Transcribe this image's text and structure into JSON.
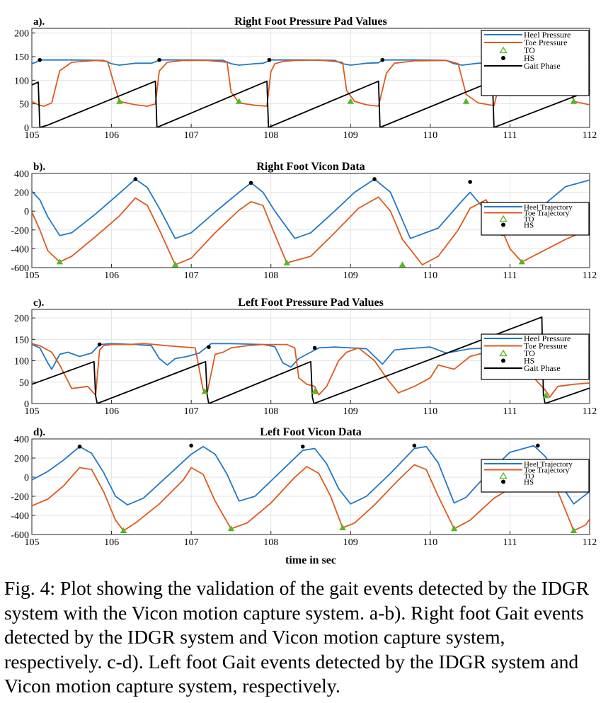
{
  "colors": {
    "heel": "#2277c6",
    "toe": "#dc5a1e",
    "gait": "#000000",
    "to_marker": "#53b824",
    "hs_marker": "#000000"
  },
  "xlabel": "time in sec",
  "caption": "Fig. 4: Plot showing the validation of the gait events detected by the IDGR system with the Vicon motion capture system. a-b). Right foot Gait events detected by the IDGR system and Vicon motion capture system, respectively. c-d). Left foot Gait events detected by the IDGR system and Vicon motion capture system, respectively.",
  "chart_data": [
    {
      "panel": "a).",
      "type": "line",
      "title": "Right Foot Pressure Pad Values",
      "xlim": [
        105,
        112
      ],
      "ylim": [
        0,
        210
      ],
      "xticks": [
        105,
        106,
        107,
        108,
        109,
        110,
        111,
        112
      ],
      "yticks": [
        0,
        50,
        100,
        150,
        200
      ],
      "grid": true,
      "legend_placement": "top-right",
      "legend": [
        "Heel Pressure",
        "Toe Pressure",
        "TO",
        "HS",
        "Gait Phase"
      ],
      "series": [
        {
          "name": "Heel Pressure",
          "color_key": "heel",
          "x": [
            105,
            105.05,
            105.1,
            105.5,
            105.9,
            106.0,
            106.1,
            106.3,
            106.5,
            106.55,
            106.6,
            107.0,
            107.4,
            107.5,
            107.6,
            107.8,
            107.9,
            107.95,
            108.0,
            108.4,
            108.8,
            108.9,
            109.0,
            109.2,
            109.35,
            109.4,
            109.8,
            110.2,
            110.3,
            110.4,
            110.6,
            110.8,
            110.85,
            111.2,
            111.6,
            111.7,
            111.8,
            112
          ],
          "y": [
            135,
            138,
            143,
            143,
            142,
            135,
            132,
            136,
            136,
            139,
            143,
            143,
            142,
            135,
            132,
            135,
            136,
            139,
            143,
            143,
            142,
            135,
            132,
            136,
            137,
            143,
            143,
            142,
            135,
            132,
            136,
            137,
            142,
            142,
            141,
            135,
            132,
            134
          ]
        },
        {
          "name": "Toe Pressure",
          "color_key": "toe",
          "x": [
            105,
            105.08,
            105.15,
            105.25,
            105.35,
            105.5,
            105.8,
            105.95,
            106.05,
            106.1,
            106.3,
            106.45,
            106.55,
            106.6,
            106.7,
            106.9,
            107.2,
            107.45,
            107.5,
            107.6,
            107.8,
            107.95,
            108.0,
            108.05,
            108.15,
            108.3,
            108.6,
            108.9,
            108.95,
            109.05,
            109.2,
            109.35,
            109.45,
            109.55,
            109.8,
            110.2,
            110.35,
            110.45,
            110.6,
            110.8,
            110.85,
            110.9,
            111.0,
            111.2,
            111.5,
            111.7,
            111.8,
            112
          ],
          "y": [
            55,
            48,
            45,
            52,
            120,
            138,
            142,
            140,
            82,
            55,
            48,
            45,
            50,
            120,
            138,
            142,
            142,
            138,
            75,
            52,
            47,
            45,
            118,
            135,
            140,
            142,
            143,
            138,
            78,
            55,
            48,
            45,
            115,
            136,
            141,
            142,
            135,
            70,
            52,
            46,
            80,
            130,
            140,
            142,
            141,
            120,
            55,
            48
          ]
        },
        {
          "name": "Gait Phase",
          "color_key": "gait",
          "x": [
            105,
            105.08,
            105.1,
            105.2,
            106.55,
            106.57,
            107.95,
            107.97,
            109.35,
            109.37,
            110.78,
            110.8,
            112
          ],
          "y": [
            90,
            96,
            0,
            5,
            98,
            0,
            98,
            0,
            98,
            0,
            98,
            0,
            78
          ]
        }
      ],
      "to_events": [
        [
          106.1,
          55
        ],
        [
          107.6,
          55
        ],
        [
          109.0,
          55
        ],
        [
          110.45,
          55
        ],
        [
          111.8,
          55
        ]
      ],
      "hs_events": [
        [
          105.1,
          143
        ],
        [
          106.6,
          143
        ],
        [
          107.98,
          143
        ],
        [
          109.4,
          143
        ],
        [
          110.85,
          142
        ]
      ]
    },
    {
      "panel": "b).",
      "type": "line",
      "title": "Right Foot Vicon Data",
      "xlim": [
        105,
        112
      ],
      "ylim": [
        -600,
        400
      ],
      "xticks": [
        105,
        106,
        107,
        108,
        109,
        110,
        111,
        112
      ],
      "yticks": [
        -600,
        -400,
        -200,
        0,
        200,
        400
      ],
      "grid": true,
      "legend_placement": "right",
      "legend": [
        "Heel Trajectory",
        "Toe Trajectory",
        "TO",
        "HS"
      ],
      "series": [
        {
          "name": "Heel Trajectory",
          "color_key": "heel",
          "x": [
            105,
            105.1,
            105.2,
            105.35,
            105.5,
            105.8,
            106.1,
            106.3,
            106.45,
            106.6,
            106.8,
            107.0,
            107.3,
            107.6,
            107.75,
            107.9,
            108.05,
            108.3,
            108.5,
            108.8,
            109.05,
            109.3,
            109.5,
            109.75,
            110.1,
            110.4,
            110.5,
            110.7,
            110.9,
            111.15,
            111.4,
            111.7,
            112
          ],
          "y": [
            210,
            120,
            -60,
            -260,
            -230,
            -30,
            190,
            340,
            250,
            30,
            -290,
            -230,
            -10,
            200,
            300,
            200,
            0,
            -290,
            -230,
            0,
            200,
            340,
            200,
            -290,
            -180,
            110,
            200,
            0,
            -260,
            -210,
            50,
            260,
            330
          ]
        },
        {
          "name": "Toe Trajectory",
          "color_key": "toe",
          "x": [
            105,
            105.1,
            105.2,
            105.35,
            105.5,
            105.8,
            106.1,
            106.3,
            106.45,
            106.6,
            106.8,
            107.0,
            107.3,
            107.6,
            107.75,
            107.9,
            108.05,
            108.2,
            108.5,
            108.8,
            109.1,
            109.35,
            109.5,
            109.65,
            109.9,
            110.1,
            110.35,
            110.5,
            110.7,
            110.85,
            111.0,
            111.15,
            111.4,
            111.7,
            112
          ],
          "y": [
            -10,
            -200,
            -420,
            -540,
            -480,
            -270,
            -50,
            140,
            60,
            -200,
            -570,
            -500,
            -230,
            10,
            100,
            60,
            -250,
            -550,
            -480,
            -230,
            30,
            150,
            0,
            -300,
            -570,
            -480,
            -200,
            30,
            120,
            -100,
            -400,
            -540,
            -430,
            -300,
            -190
          ]
        }
      ],
      "to_events": [
        [
          105.35,
          -540
        ],
        [
          106.8,
          -570
        ],
        [
          108.2,
          -550
        ],
        [
          109.65,
          -570
        ],
        [
          111.15,
          -540
        ]
      ],
      "hs_events": [
        [
          106.3,
          340
        ],
        [
          107.75,
          300
        ],
        [
          109.3,
          340
        ],
        [
          110.5,
          310
        ]
      ]
    },
    {
      "panel": "c).",
      "type": "line",
      "title": "Left Foot Pressure Pad Values",
      "xlim": [
        105,
        112
      ],
      "ylim": [
        0,
        220
      ],
      "xticks": [
        105,
        106,
        107,
        108,
        109,
        110,
        111,
        112
      ],
      "yticks": [
        0,
        50,
        100,
        150,
        200
      ],
      "grid": true,
      "legend_placement": "right",
      "legend": [
        "Heel Pressure",
        "Toe Pressure",
        "TO",
        "HS",
        "Gait Phase"
      ],
      "series": [
        {
          "name": "Heel Pressure",
          "color_key": "heel",
          "x": [
            105,
            105.1,
            105.2,
            105.25,
            105.35,
            105.45,
            105.6,
            105.75,
            105.85,
            106.0,
            106.3,
            106.5,
            106.6,
            106.7,
            106.8,
            106.95,
            107.1,
            107.25,
            107.5,
            107.9,
            108.05,
            108.15,
            108.25,
            108.35,
            108.5,
            108.6,
            108.8,
            109.0,
            109.2,
            109.3,
            109.4,
            109.55,
            109.7,
            109.85,
            110.0,
            110.2,
            110.5,
            110.8,
            111.0,
            111.2,
            111.4,
            111.5,
            111.7,
            112
          ],
          "y": [
            138,
            130,
            95,
            80,
            115,
            120,
            110,
            118,
            138,
            140,
            138,
            135,
            105,
            90,
            105,
            110,
            118,
            140,
            140,
            138,
            133,
            95,
            85,
            105,
            120,
            130,
            132,
            130,
            128,
            110,
            92,
            125,
            128,
            130,
            132,
            118,
            128,
            130,
            136,
            118,
            100,
            135,
            132,
            138
          ]
        },
        {
          "name": "Toe Pressure",
          "color_key": "toe",
          "x": [
            105,
            105.1,
            105.25,
            105.35,
            105.5,
            105.7,
            105.75,
            105.8,
            105.85,
            105.9,
            106.0,
            106.2,
            106.4,
            106.6,
            106.7,
            107.05,
            107.15,
            107.2,
            107.3,
            107.4,
            107.5,
            107.7,
            107.9,
            108.2,
            108.3,
            108.35,
            108.45,
            108.55,
            108.6,
            108.7,
            108.85,
            108.95,
            109.1,
            109.3,
            109.45,
            109.6,
            109.8,
            110.0,
            110.1,
            110.3,
            110.5,
            110.7,
            110.9,
            111.1,
            111.3,
            111.45,
            111.5,
            111.6,
            111.8,
            112
          ],
          "y": [
            140,
            135,
            120,
            90,
            35,
            40,
            30,
            20,
            125,
            135,
            138,
            138,
            140,
            137,
            135,
            130,
            32,
            25,
            115,
            120,
            130,
            135,
            138,
            138,
            130,
            60,
            45,
            40,
            20,
            40,
            100,
            120,
            130,
            100,
            60,
            25,
            40,
            60,
            90,
            80,
            110,
            120,
            130,
            140,
            60,
            30,
            15,
            40,
            45,
            48
          ]
        },
        {
          "name": "Gait Phase",
          "color_key": "gait",
          "x": [
            105,
            105.78,
            105.8,
            105.82,
            107.18,
            107.2,
            107.22,
            108.5,
            108.52,
            108.54,
            111.4,
            111.42,
            111.44,
            112
          ],
          "y": [
            45,
            98,
            18,
            0,
            98,
            20,
            0,
            98,
            15,
            0,
            202,
            20,
            0,
            36
          ]
        }
      ],
      "to_events": [
        [
          107.17,
          28
        ],
        [
          108.55,
          28
        ],
        [
          111.45,
          18
        ]
      ],
      "hs_events": [
        [
          105.85,
          138
        ],
        [
          107.22,
          132
        ],
        [
          108.55,
          130
        ]
      ]
    },
    {
      "panel": "d).",
      "type": "line",
      "title": "Left Foot Vicon Data",
      "xlim": [
        105,
        112
      ],
      "ylim": [
        -600,
        400
      ],
      "xticks": [
        105,
        106,
        107,
        108,
        109,
        110,
        111,
        112
      ],
      "yticks": [
        -600,
        -400,
        -200,
        0,
        200,
        400
      ],
      "xlabel": "time in sec",
      "grid": true,
      "legend_placement": "right",
      "legend": [
        "Heel Trajectory",
        "Toe Trajectory",
        "TO",
        "HS"
      ],
      "series": [
        {
          "name": "Heel Trajectory",
          "color_key": "heel",
          "x": [
            105,
            105.2,
            105.4,
            105.6,
            105.75,
            105.9,
            106.05,
            106.2,
            106.4,
            106.7,
            107.0,
            107.15,
            107.3,
            107.45,
            107.6,
            107.8,
            108.1,
            108.4,
            108.55,
            108.7,
            108.85,
            109.0,
            109.2,
            109.5,
            109.8,
            109.95,
            110.1,
            110.3,
            110.45,
            110.7,
            111.0,
            111.3,
            111.45,
            111.6,
            111.8,
            112
          ],
          "y": [
            -30,
            60,
            180,
            320,
            250,
            50,
            -200,
            -290,
            -220,
            10,
            240,
            320,
            240,
            30,
            -250,
            -200,
            40,
            280,
            300,
            140,
            -120,
            -280,
            -200,
            40,
            300,
            320,
            150,
            -270,
            -210,
            20,
            260,
            330,
            210,
            -30,
            -280,
            -150
          ]
        },
        {
          "name": "Toe Trajectory",
          "color_key": "toe",
          "x": [
            105,
            105.2,
            105.4,
            105.6,
            105.75,
            105.9,
            106.05,
            106.15,
            106.3,
            106.6,
            106.9,
            107.0,
            107.15,
            107.3,
            107.5,
            107.7,
            108.0,
            108.3,
            108.45,
            108.6,
            108.75,
            108.9,
            109.05,
            109.3,
            109.6,
            109.8,
            109.95,
            110.1,
            110.3,
            110.5,
            110.8,
            111.1,
            111.35,
            111.5,
            111.65,
            111.8,
            111.95,
            112
          ],
          "y": [
            -300,
            -230,
            -90,
            100,
            80,
            -150,
            -450,
            -560,
            -480,
            -280,
            -30,
            100,
            30,
            -250,
            -540,
            -480,
            -270,
            0,
            110,
            40,
            -200,
            -530,
            -480,
            -290,
            -30,
            130,
            80,
            -200,
            -540,
            -450,
            -220,
            -70,
            140,
            50,
            -250,
            -560,
            -500,
            -440
          ]
        }
      ],
      "to_events": [
        [
          106.15,
          -560
        ],
        [
          107.5,
          -540
        ],
        [
          108.9,
          -530
        ],
        [
          110.3,
          -540
        ],
        [
          111.8,
          -560
        ]
      ],
      "hs_events": [
        [
          105.6,
          320
        ],
        [
          107.0,
          330
        ],
        [
          108.4,
          320
        ],
        [
          109.8,
          330
        ],
        [
          111.35,
          330
        ]
      ]
    }
  ]
}
